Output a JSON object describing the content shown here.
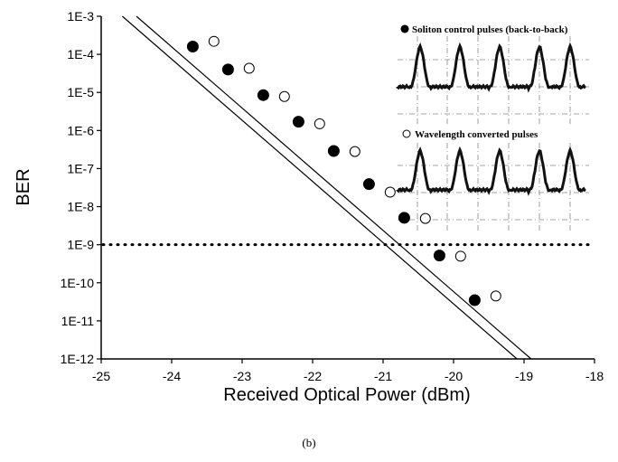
{
  "chart_data": {
    "type": "scatter",
    "xlabel": "Received Optical Power (dBm)",
    "ylabel": "BER",
    "xlim": [
      -25,
      -18
    ],
    "ylim_exponent": [
      -12,
      -3
    ],
    "y_scale": "log",
    "x_ticks": [
      "-25",
      "-24",
      "-23",
      "-22",
      "-21",
      "-20",
      "-19",
      "-18"
    ],
    "y_ticks": [
      "1E-12",
      "1E-11",
      "1E-10",
      "1E-9",
      "1E-8",
      "1E-7",
      "1E-6",
      "1E-5",
      "1E-4",
      "1E-3"
    ],
    "caption": "(b)",
    "threshold_ber": 1e-09,
    "series": [
      {
        "name": "Soliton control pulses (back-to-back)",
        "marker": "filled-circle",
        "color": "#000000",
        "x": [
          -23.7,
          -23.2,
          -22.7,
          -22.2,
          -21.7,
          -21.2,
          -20.7,
          -20.2,
          -19.7
        ],
        "y": [
          0.00016,
          4e-05,
          8.5e-06,
          1.7e-06,
          2.9e-07,
          3.9e-08,
          5.1e-09,
          5.2e-10,
          3.5e-11
        ],
        "fit_line": {
          "x": [
            -24.7,
            -19.1
          ],
          "y": [
            0.001,
            1e-12
          ]
        }
      },
      {
        "name": "Wavelength converted pulses",
        "marker": "open-circle",
        "color": "#000000",
        "x": [
          -23.4,
          -22.9,
          -22.4,
          -21.9,
          -21.4,
          -20.9,
          -20.4,
          -19.9,
          -19.4
        ],
        "y": [
          0.00022,
          4.3e-05,
          7.8e-06,
          1.5e-06,
          2.8e-07,
          2.4e-08,
          4.9e-09,
          5e-10,
          4.5e-11
        ],
        "fit_line": {
          "x": [
            -24.5,
            -18.9
          ],
          "y": [
            0.001,
            1e-12
          ]
        }
      }
    ]
  }
}
